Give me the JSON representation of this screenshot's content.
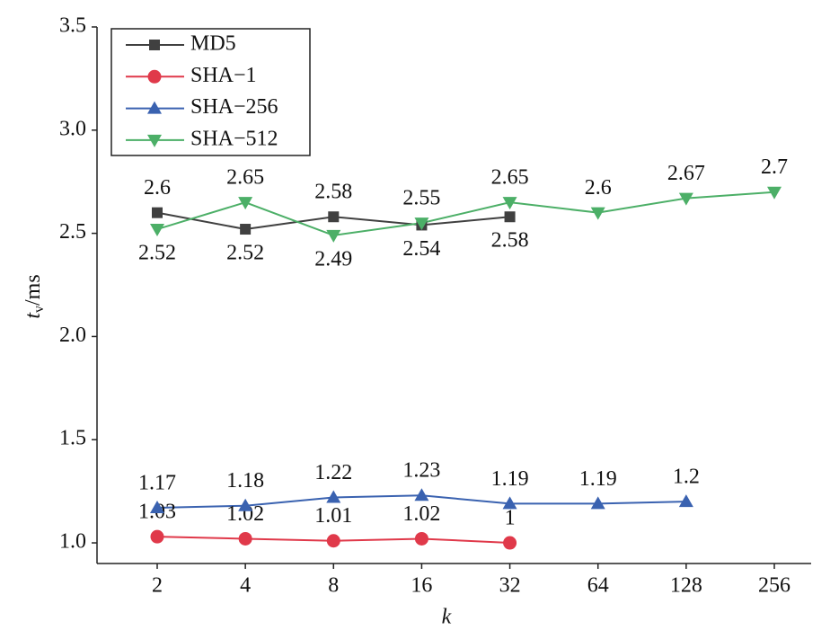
{
  "chart_data": {
    "type": "line",
    "xlabel": "k",
    "ylabel": {
      "main": "t",
      "sub": "v",
      "unit": "/ms"
    },
    "categories": [
      "2",
      "4",
      "8",
      "16",
      "32",
      "64",
      "128",
      "256"
    ],
    "series": [
      {
        "name": "MD5",
        "color": "#404040",
        "marker": "square",
        "values": [
          2.6,
          2.52,
          2.58,
          2.54,
          2.58,
          null,
          null,
          null
        ]
      },
      {
        "name": "SHA−1",
        "color": "#e0394a",
        "marker": "circle",
        "values": [
          1.03,
          1.02,
          1.01,
          1.02,
          1,
          null,
          null,
          null
        ]
      },
      {
        "name": "SHA−256",
        "color": "#3a62b0",
        "marker": "triangle-up",
        "values": [
          1.17,
          1.18,
          1.22,
          1.23,
          1.19,
          1.19,
          1.2,
          null
        ]
      },
      {
        "name": "SHA−512",
        "color": "#4caf67",
        "marker": "triangle-down",
        "values": [
          2.52,
          2.65,
          2.49,
          2.55,
          2.65,
          2.6,
          2.67,
          2.7
        ]
      }
    ],
    "ylim": [
      0.9,
      3.5
    ],
    "yticks": [
      {
        "value": 1.0,
        "label": "1.0"
      },
      1.5,
      {
        "value": 2.0,
        "label": "2.0"
      },
      2.5,
      {
        "value": 3.0,
        "label": "3.0"
      },
      3.5
    ],
    "legend": "upper left",
    "grid": false
  }
}
